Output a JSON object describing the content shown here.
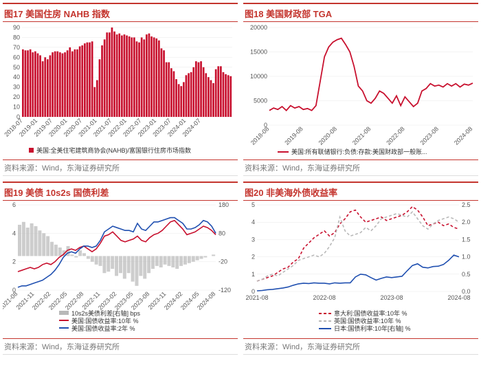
{
  "source_label": "资料来源：Wind，东海证券研究所",
  "colors": {
    "brand": "#c4342d",
    "red": "#c8102e",
    "blue": "#1f4fb0",
    "gray": "#b8b8b8",
    "grid": "#e8e8e8",
    "axis": "#555555"
  },
  "chart17": {
    "title": "图17  美国住房 NAHB 指数",
    "type": "bar",
    "legend": "美国:全美住宅建筑商协会(NAHB)/富国银行住房市场指数",
    "legend_marker": "square",
    "legend_color": "#c8102e",
    "ylim": [
      0,
      90
    ],
    "ytick_step": 10,
    "categories": [
      "2018-07",
      "2019-01",
      "2019-07",
      "2020-01",
      "2020-07",
      "2021-01",
      "2021-07",
      "2022-01",
      "2022-07",
      "2023-01",
      "2023-07",
      "2024-01",
      "2024-07"
    ],
    "values": [
      68,
      67,
      67,
      68,
      65,
      66,
      64,
      62,
      56,
      60,
      58,
      62,
      65,
      66,
      66,
      65,
      64,
      65,
      67,
      70,
      66,
      68,
      68,
      71,
      72,
      74,
      75,
      75,
      76,
      30,
      37,
      58,
      72,
      78,
      85,
      85,
      90,
      86,
      83,
      84,
      82,
      83,
      82,
      81,
      80,
      80,
      76,
      75,
      80,
      78,
      83,
      84,
      81,
      80,
      79,
      77,
      69,
      67,
      55,
      55,
      49,
      46,
      38,
      33,
      31,
      35,
      42,
      44,
      45,
      50,
      56,
      55,
      56,
      50,
      44,
      40,
      37,
      34,
      48,
      51,
      51,
      45,
      43,
      42,
      41
    ],
    "bar_color": "#c8102e",
    "label_fontsize": 9,
    "title_fontsize": 13
  },
  "chart18": {
    "title": "图18  美国财政部 TGA",
    "type": "line",
    "legend": "美国:所有联储银行:负债:存款:美国财政部一般账...",
    "legend_color": "#c8102e",
    "ylim": [
      0,
      20000
    ],
    "ytick_step": 5000,
    "categories": [
      "2018-08",
      "2019-08",
      "2020-08",
      "2021-08",
      "2022-08",
      "2023-08",
      "2024-08"
    ],
    "series": [
      {
        "color": "#c8102e",
        "width": 1.8,
        "values": [
          3000,
          3500,
          3200,
          3800,
          3000,
          4000,
          3500,
          3800,
          3200,
          3400,
          3000,
          4000,
          9000,
          14000,
          16000,
          17000,
          17500,
          17800,
          16500,
          15000,
          12000,
          8000,
          7000,
          5000,
          4500,
          5500,
          7000,
          6500,
          5500,
          4500,
          6000,
          4000,
          5800,
          4800,
          3800,
          4500,
          7000,
          7500,
          8500,
          8000,
          8200,
          7800,
          8500,
          8000,
          8500,
          7800,
          8400,
          8200,
          8600
        ]
      }
    ],
    "label_fontsize": 9
  },
  "chart19": {
    "title": "图19  美债 10s2s 国债利差",
    "type": "line-dual",
    "legends": [
      {
        "label": "10s2s美债利差[右轴] bps",
        "color": "#b8b8b8",
        "type": "area"
      },
      {
        "label": "美国:国债收益率:10年 %",
        "color": "#c8102e",
        "type": "line"
      },
      {
        "label": "美国:国债收益率:2年 %",
        "color": "#1f4fb0",
        "type": "line"
      }
    ],
    "yleft": {
      "lim": [
        0,
        6
      ],
      "step": 2
    },
    "yright": {
      "lim": [
        -120,
        180
      ],
      "step": 100
    },
    "categories": [
      "2021-08",
      "2021-11",
      "2022-02",
      "2022-05",
      "2022-08",
      "2022-11",
      "2023-02",
      "2023-05",
      "2023-08",
      "2023-11",
      "2024-02",
      "2024-05",
      "2024-08"
    ],
    "spread": [
      110,
      120,
      100,
      115,
      105,
      90,
      80,
      70,
      50,
      40,
      30,
      20,
      35,
      5,
      -5,
      20,
      10,
      -10,
      -20,
      -30,
      -35,
      -60,
      -55,
      -45,
      -70,
      -60,
      -80,
      -60,
      -90,
      -105,
      -70,
      -80,
      -60,
      -45,
      -35,
      -40,
      -30,
      -35,
      -40,
      -45,
      -35,
      -30,
      -25,
      -20,
      -15,
      -10,
      -5,
      0,
      5
    ],
    "yield10": [
      1.3,
      1.4,
      1.5,
      1.6,
      1.5,
      1.6,
      1.8,
      1.9,
      1.8,
      2.0,
      2.3,
      2.5,
      2.8,
      2.9,
      2.8,
      3.0,
      3.1,
      2.9,
      2.7,
      2.9,
      3.3,
      3.8,
      3.9,
      4.1,
      3.8,
      3.5,
      3.4,
      3.5,
      3.6,
      3.8,
      3.5,
      3.4,
      3.7,
      3.9,
      4.0,
      4.2,
      4.5,
      4.8,
      4.9,
      4.6,
      4.3,
      3.9,
      4.0,
      4.1,
      4.3,
      4.5,
      4.4,
      4.2,
      3.9
    ],
    "yield2": [
      0.2,
      0.3,
      0.3,
      0.4,
      0.5,
      0.6,
      0.7,
      0.9,
      1.1,
      1.4,
      1.8,
      2.3,
      2.6,
      2.7,
      2.6,
      2.9,
      3.1,
      3.1,
      3.0,
      3.1,
      3.5,
      4.1,
      4.3,
      4.5,
      4.4,
      4.3,
      4.2,
      4.2,
      4.1,
      4.7,
      4.3,
      4.2,
      4.5,
      4.8,
      4.8,
      4.9,
      5.0,
      5.1,
      5.1,
      4.9,
      4.7,
      4.3,
      4.3,
      4.4,
      4.6,
      4.9,
      4.8,
      4.5,
      4.0
    ],
    "label_fontsize": 9
  },
  "chart20": {
    "title": "图20  非美海外债收益率",
    "type": "line-dual",
    "legends": [
      {
        "label": "意大利:国债收益率:10年 %",
        "color": "#c8102e",
        "dash": "4,3"
      },
      {
        "label": "英国:国债收益率:10年 %",
        "color": "#b8b8b8",
        "dash": "4,3"
      },
      {
        "label": "日本:国债利率:10年[右轴] %",
        "color": "#1f4fb0",
        "dash": "none"
      }
    ],
    "yleft": {
      "lim": [
        0,
        5
      ],
      "step": 1
    },
    "yright": {
      "lim": [
        0.0,
        2.5
      ],
      "step": 0.5
    },
    "categories": [
      "2021-08",
      "2022-08",
      "2023-08",
      "2024-08"
    ],
    "italy": [
      0.6,
      0.7,
      0.8,
      0.9,
      1.1,
      1.3,
      1.4,
      1.7,
      1.9,
      2.5,
      2.8,
      3.1,
      3.3,
      3.5,
      3.2,
      3.4,
      3.9,
      4.2,
      4.6,
      4.7,
      4.3,
      4.0,
      4.1,
      4.2,
      4.3,
      4.1,
      4.2,
      4.3,
      4.4,
      4.6,
      4.9,
      4.7,
      4.3,
      3.8,
      3.9,
      4.0,
      3.8,
      3.9,
      3.7,
      3.6
    ],
    "uk": [
      0.6,
      0.7,
      0.9,
      1.0,
      0.9,
      1.1,
      1.3,
      1.5,
      1.8,
      1.9,
      2.0,
      2.1,
      2.0,
      2.2,
      2.6,
      3.1,
      4.3,
      3.5,
      3.2,
      3.3,
      3.4,
      3.7,
      3.5,
      3.8,
      4.2,
      4.3,
      4.4,
      4.5,
      4.4,
      4.3,
      4.6,
      4.2,
      3.8,
      3.6,
      3.9,
      4.1,
      4.2,
      4.3,
      4.2,
      4.0
    ],
    "japan": [
      0.02,
      0.03,
      0.05,
      0.06,
      0.08,
      0.1,
      0.13,
      0.18,
      0.22,
      0.24,
      0.23,
      0.25,
      0.24,
      0.24,
      0.22,
      0.25,
      0.24,
      0.25,
      0.25,
      0.42,
      0.5,
      0.48,
      0.4,
      0.33,
      0.38,
      0.42,
      0.4,
      0.42,
      0.44,
      0.6,
      0.75,
      0.8,
      0.7,
      0.68,
      0.72,
      0.73,
      0.78,
      0.9,
      1.05,
      1.0
    ]
  }
}
